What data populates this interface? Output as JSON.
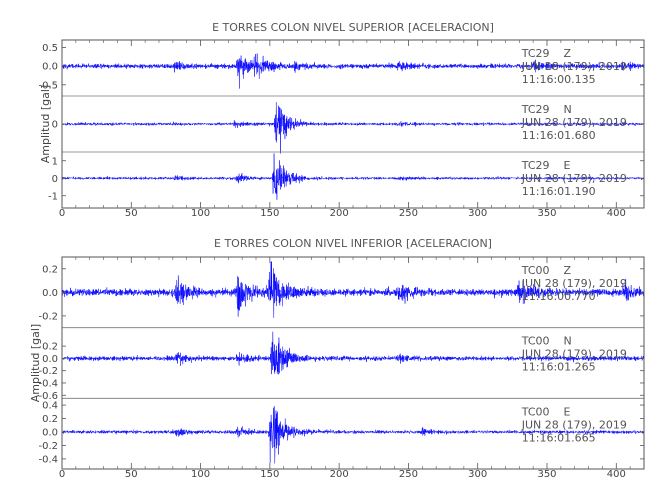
{
  "chart_data": [
    {
      "type": "line",
      "title": "E TORRES COLON NIVEL SUPERIOR [ACELERACION]",
      "ylabel": "Amplitud [gal]",
      "xlim": [
        0,
        420
      ],
      "xticks": [
        0,
        50,
        100,
        150,
        200,
        250,
        300,
        350,
        400
      ],
      "trace_color": "#0000ff",
      "traces": [
        {
          "station": "TC29",
          "component": "Z",
          "date": "JUN 28 (179), 2019",
          "time": "11:16:00.135",
          "ylim": [
            -0.8,
            0.7
          ],
          "yticks": [
            {
              "v": 0.5,
              "t": "0.5"
            },
            {
              "v": 0.0,
              "t": "0.0"
            },
            {
              "v": -0.5,
              "t": "-0.5"
            }
          ],
          "noise": 0.05,
          "peak": 0.6,
          "seed": 11,
          "bursts": [
            {
              "t": 82,
              "a": 0.13
            },
            {
              "t": 127,
              "a": 0.35
            },
            {
              "t": 140,
              "a": 0.25
            },
            {
              "t": 168,
              "a": 0.08
            },
            {
              "t": 243,
              "a": 0.1
            },
            {
              "t": 340,
              "a": 0.09
            },
            {
              "t": 405,
              "a": 0.09
            }
          ]
        },
        {
          "station": "TC29",
          "component": "N",
          "date": "JUN 28 (179), 2019",
          "time": "11:16:01.680",
          "ylim": [
            -0.5,
            0.5
          ],
          "yticks": [
            {
              "v": 0.0,
              "t": "0"
            }
          ],
          "noise": 0.02,
          "peak": 0.4,
          "seed": 23,
          "bursts": [
            {
              "t": 155,
              "a": 0.4
            },
            {
              "t": 125,
              "a": 0.04
            },
            {
              "t": 243,
              "a": 0.03
            }
          ]
        },
        {
          "station": "TC29",
          "component": "E",
          "date": "JUN 28 (179), 2019",
          "time": "11:16:01.190",
          "ylim": [
            -1.7,
            1.5
          ],
          "yticks": [
            {
              "v": 1.0,
              "t": "1"
            },
            {
              "v": 0.0,
              "t": "0"
            },
            {
              "v": -1.0,
              "t": "-1"
            }
          ],
          "noise": 0.06,
          "peak": 1.3,
          "seed": 37,
          "bursts": [
            {
              "t": 153,
              "a": 1.3
            },
            {
              "t": 127,
              "a": 0.2
            },
            {
              "t": 82,
              "a": 0.1
            },
            {
              "t": 243,
              "a": 0.08
            }
          ]
        }
      ]
    },
    {
      "type": "line",
      "title": "E TORRES COLON NIVEL INFERIOR [ACELERACION]",
      "ylabel": "Amplitud [gal]",
      "xlim": [
        0,
        420
      ],
      "xticks": [
        0,
        50,
        100,
        150,
        200,
        250,
        300,
        350,
        400
      ],
      "trace_color": "#0000ff",
      "traces": [
        {
          "station": "TC00",
          "component": "Z",
          "date": "JUN 28 (179), 2019",
          "time": "11:16:00.770",
          "ylim": [
            -0.3,
            0.3
          ],
          "yticks": [
            {
              "v": 0.2,
              "t": "0.2"
            },
            {
              "v": 0.0,
              "t": "0.0"
            },
            {
              "v": -0.2,
              "t": "-0.2"
            }
          ],
          "noise": 0.025,
          "peak": 0.27,
          "seed": 53,
          "bursts": [
            {
              "t": 83,
              "a": 0.1
            },
            {
              "t": 127,
              "a": 0.13
            },
            {
              "t": 150,
              "a": 0.25
            },
            {
              "t": 243,
              "a": 0.06
            },
            {
              "t": 330,
              "a": 0.08
            },
            {
              "t": 405,
              "a": 0.06
            }
          ]
        },
        {
          "station": "TC00",
          "component": "N",
          "date": "JUN 28 (179), 2019",
          "time": "11:16:01.265",
          "ylim": [
            -0.65,
            0.5
          ],
          "yticks": [
            {
              "v": 0.2,
              "t": "0.2"
            },
            {
              "v": 0.0,
              "t": "0.0"
            },
            {
              "v": -0.2,
              "t": "-0.2"
            },
            {
              "v": -0.4,
              "t": "-0.4"
            },
            {
              "v": -0.6,
              "t": "-0.6"
            }
          ],
          "noise": 0.03,
          "peak": 0.45,
          "seed": 71,
          "bursts": [
            {
              "t": 152,
              "a": 0.45
            },
            {
              "t": 83,
              "a": 0.06
            },
            {
              "t": 127,
              "a": 0.08
            },
            {
              "t": 243,
              "a": 0.05
            }
          ]
        },
        {
          "station": "TC00",
          "component": "E",
          "date": "JUN 28 (179), 2019",
          "time": "11:16:01.665",
          "ylim": [
            -0.55,
            0.5
          ],
          "yticks": [
            {
              "v": 0.4,
              "t": "0.4"
            },
            {
              "v": 0.2,
              "t": "0.2"
            },
            {
              "v": 0.0,
              "t": "0.0"
            },
            {
              "v": -0.2,
              "t": "-0.2"
            },
            {
              "v": -0.4,
              "t": "-0.4"
            }
          ],
          "noise": 0.02,
          "peak": 0.45,
          "seed": 89,
          "bursts": [
            {
              "t": 151,
              "a": 0.45
            },
            {
              "t": 127,
              "a": 0.06
            },
            {
              "t": 83,
              "a": 0.04
            },
            {
              "t": 260,
              "a": 0.03
            }
          ]
        }
      ]
    }
  ]
}
